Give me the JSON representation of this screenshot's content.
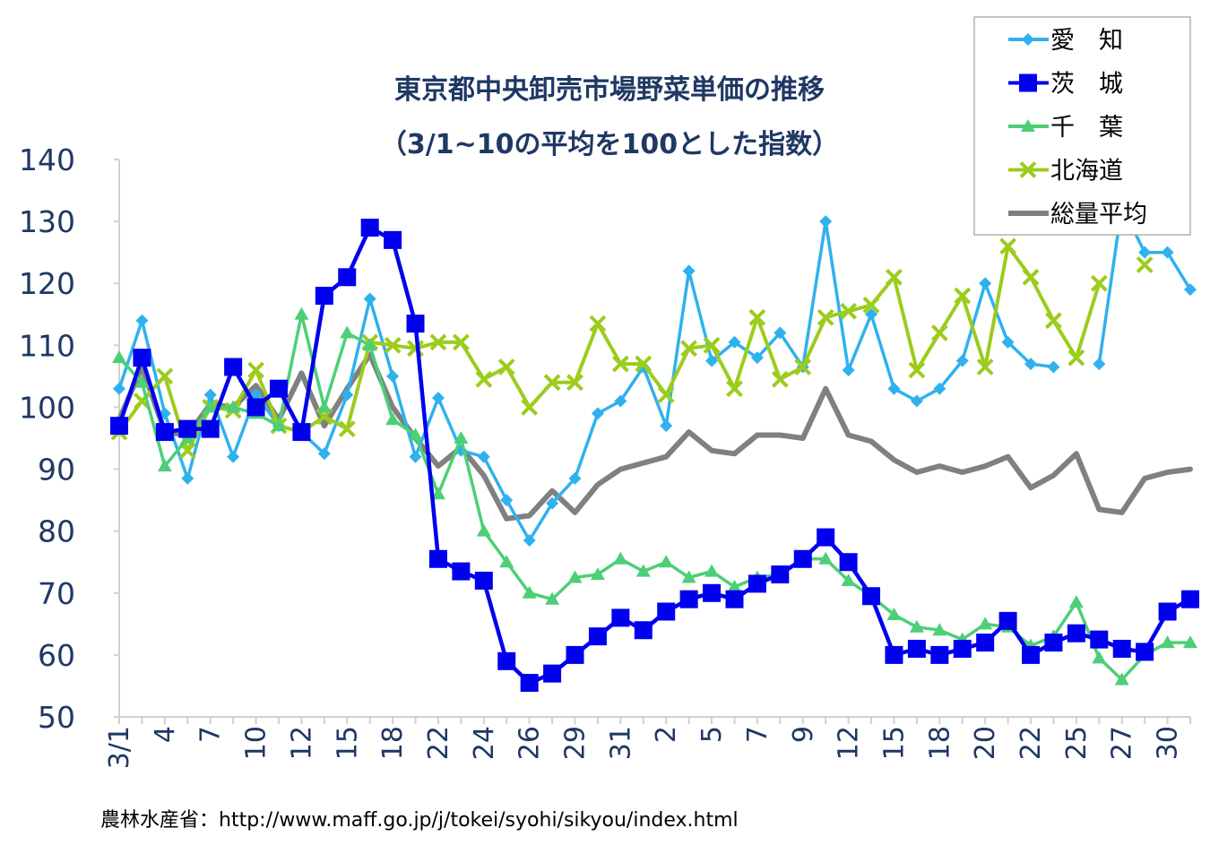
{
  "chart_data": {
    "type": "line",
    "title": "東京都中央卸売市場野菜単価の推移",
    "subtitle": "（3/1~10の平均を100とした指数）",
    "source": "農林水産省：http://www.maff.go.jp/j/tokei/syohi/sikyou/index.html",
    "xlabel": "",
    "ylabel": "",
    "ylim": [
      50,
      140
    ],
    "yticks": [
      50,
      60,
      70,
      80,
      90,
      100,
      110,
      120,
      130,
      140
    ],
    "grid": false,
    "legend_position": "top-right",
    "x_tick_labels": [
      {
        "label": "3/1",
        "index": 0
      },
      {
        "label": "4",
        "index": 2
      },
      {
        "label": "7",
        "index": 4
      },
      {
        "label": "10",
        "index": 6
      },
      {
        "label": "12",
        "index": 8
      },
      {
        "label": "15",
        "index": 10
      },
      {
        "label": "18",
        "index": 12
      },
      {
        "label": "22",
        "index": 14
      },
      {
        "label": "24",
        "index": 16
      },
      {
        "label": "26",
        "index": 18
      },
      {
        "label": "29",
        "index": 20
      },
      {
        "label": "31",
        "index": 22
      },
      {
        "label": "2",
        "index": 24
      },
      {
        "label": "5",
        "index": 26
      },
      {
        "label": "7",
        "index": 28
      },
      {
        "label": "9",
        "index": 30
      },
      {
        "label": "12",
        "index": 32
      },
      {
        "label": "15",
        "index": 34
      },
      {
        "label": "18",
        "index": 36
      },
      {
        "label": "20",
        "index": 38
      },
      {
        "label": "22",
        "index": 40
      },
      {
        "label": "25",
        "index": 42
      },
      {
        "label": "27",
        "index": 44
      },
      {
        "label": "30",
        "index": 46
      }
    ],
    "n_points": 48,
    "series": [
      {
        "name": "愛　知",
        "color": "#2fb1ee",
        "marker": "diamond",
        "values": [
          103,
          114,
          99,
          88.5,
          102,
          92,
          102,
          97,
          96,
          92.5,
          102,
          117.5,
          105,
          92,
          101.5,
          93,
          92,
          85,
          78.5,
          84.5,
          88.5,
          99,
          101,
          106.5,
          97,
          122,
          107.5,
          110.5,
          108,
          112,
          106.5,
          130,
          106,
          115,
          103,
          101,
          103,
          107.5,
          120,
          110.5,
          107,
          106.5,
          null,
          107,
          132.5,
          125,
          125,
          119
        ]
      },
      {
        "name": "茨　城",
        "color": "#0000ee",
        "marker": "square",
        "values": [
          97,
          108,
          96,
          96.5,
          96.5,
          106.5,
          100,
          103,
          96,
          118,
          121,
          129,
          127,
          113.5,
          75.5,
          73.5,
          72,
          59,
          55.5,
          57,
          60,
          63,
          66,
          64,
          67,
          69,
          70,
          69,
          71.5,
          73,
          75.5,
          79,
          75,
          69.5,
          60,
          61,
          60,
          61,
          62,
          65.5,
          60,
          62,
          63.5,
          62.5,
          61,
          60.5,
          67,
          69
        ]
      },
      {
        "name": "千　葉",
        "color": "#4ccf76",
        "marker": "triangle",
        "values": [
          108,
          104,
          90.5,
          95,
          100,
          100,
          99,
          97,
          115,
          100,
          112,
          110,
          98,
          95.5,
          86,
          95,
          80,
          75,
          70,
          69,
          72.5,
          73,
          75.5,
          73.5,
          75,
          72.5,
          73.5,
          71,
          72.5,
          73,
          75.5,
          75.5,
          72,
          69.5,
          66.5,
          64.5,
          64,
          62.5,
          65,
          64.5,
          61.5,
          63,
          68.5,
          59.5,
          56,
          60,
          62,
          62
        ]
      },
      {
        "name": "北海道",
        "color": "#9ccc1c",
        "marker": "x",
        "values": [
          96,
          101,
          105,
          93,
          100,
          99.5,
          106,
          97,
          96,
          98.5,
          96.5,
          110.5,
          110,
          109.5,
          110.5,
          110.5,
          104.5,
          106.5,
          100,
          104,
          104,
          113.5,
          107,
          107,
          102,
          109.5,
          110,
          103,
          114.5,
          104.5,
          106.5,
          114.5,
          115.5,
          116.5,
          121,
          106,
          112,
          118,
          106.5,
          126,
          121,
          114,
          108,
          120,
          null,
          123,
          null,
          null
        ]
      },
      {
        "name": "総量平均",
        "color": "#808080",
        "marker": "none",
        "values": [
          98,
          106.5,
          96,
          95.5,
          100.5,
          100,
          103.5,
          98,
          105.5,
          97,
          103,
          108.5,
          100,
          95,
          90.5,
          93.5,
          89,
          82,
          82.5,
          86.5,
          83,
          87.5,
          90,
          91,
          92,
          96,
          93,
          92.5,
          95.5,
          95.5,
          95,
          103,
          95.5,
          94.5,
          91.5,
          89.5,
          90.5,
          89.5,
          90.5,
          92,
          87,
          89,
          92.5,
          83.5,
          83,
          88.5,
          89.5,
          90
        ]
      }
    ]
  }
}
